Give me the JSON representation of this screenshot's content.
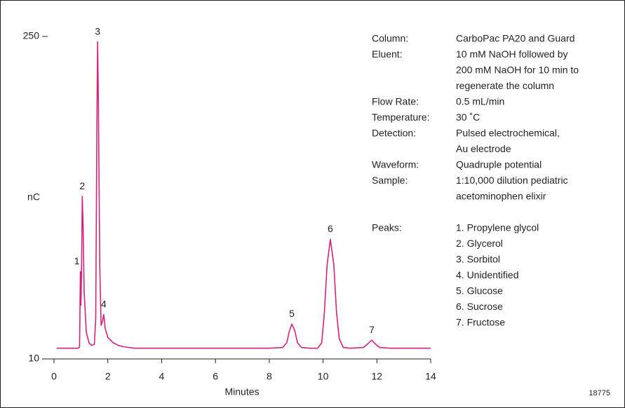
{
  "chart_data": {
    "type": "line",
    "x_label": "Minutes",
    "y_label": "nC",
    "xlim": [
      0,
      14
    ],
    "xticks": [
      0,
      2,
      4,
      6,
      8,
      10,
      12,
      14
    ],
    "ylim": [
      10,
      250
    ],
    "yticks": [
      10,
      250
    ],
    "color": "#d4237e",
    "x": [
      0.1,
      0.5,
      0.9,
      0.95,
      0.98,
      1.0,
      1.02,
      1.05,
      1.08,
      1.12,
      1.2,
      1.3,
      1.4,
      1.5,
      1.55,
      1.6,
      1.62,
      1.65,
      1.7,
      1.75,
      1.8,
      1.85,
      1.9,
      2.0,
      2.2,
      2.4,
      2.6,
      3,
      4,
      6,
      8,
      8.5,
      8.65,
      8.75,
      8.84,
      8.95,
      9.05,
      9.2,
      9.5,
      9.8,
      9.95,
      10.05,
      10.15,
      10.27,
      10.4,
      10.5,
      10.6,
      10.75,
      11.0,
      11.5,
      11.65,
      11.81,
      11.95,
      12.1,
      12.5,
      14
    ],
    "values": [
      18,
      18,
      18,
      19,
      75,
      50,
      70,
      131,
      110,
      60,
      30,
      22,
      20,
      21,
      40,
      200,
      246,
      200,
      80,
      35,
      38,
      43,
      33,
      26,
      22,
      20,
      19,
      18,
      18,
      18,
      18,
      18.5,
      22,
      31,
      36,
      31,
      22,
      18.5,
      18,
      18,
      22,
      45,
      80,
      99,
      80,
      45,
      25,
      18.5,
      18,
      18.5,
      21,
      24,
      21,
      18.5,
      18,
      18
    ],
    "annotations": [
      {
        "text": "1",
        "x": 0.98,
        "y": 75
      },
      {
        "text": "2",
        "x": 1.05,
        "y": 131
      },
      {
        "text": "3",
        "x": 1.62,
        "y": 246
      },
      {
        "text": "4",
        "x": 1.85,
        "y": 43
      },
      {
        "text": "5",
        "x": 8.84,
        "y": 36
      },
      {
        "text": "6",
        "x": 10.27,
        "y": 99
      },
      {
        "text": "7",
        "x": 11.81,
        "y": 24
      }
    ]
  },
  "conditions": [
    {
      "label": "Column:",
      "lines": [
        "CarboPac PA20 and Guard"
      ]
    },
    {
      "label": "Eluent:",
      "lines": [
        "10 mM NaOH followed by",
        "200 mM NaOH for 10 min to",
        "regenerate the column"
      ]
    },
    {
      "label": "Flow Rate:",
      "lines": [
        "0.5 mL/min"
      ]
    },
    {
      "label": "Temperature:",
      "lines": [
        "30 ˚C"
      ]
    },
    {
      "label": "Detection:",
      "lines": [
        "Pulsed electrochemical,",
        "Au electrode"
      ]
    },
    {
      "label": "Waveform:",
      "lines": [
        "Quadruple potential"
      ]
    },
    {
      "label": "Sample:",
      "lines": [
        "1:10,000 dilution pediatric",
        "acetominophen elixir"
      ]
    },
    {
      "label": "Peaks:",
      "lines": [
        "1. Propylene glycol",
        "2. Glycerol",
        "3. Sorbitol",
        "4. Unidentified",
        "5. Glucose",
        "6. Sucrose",
        "7. Fructose"
      ]
    }
  ],
  "figure_number": "18775"
}
